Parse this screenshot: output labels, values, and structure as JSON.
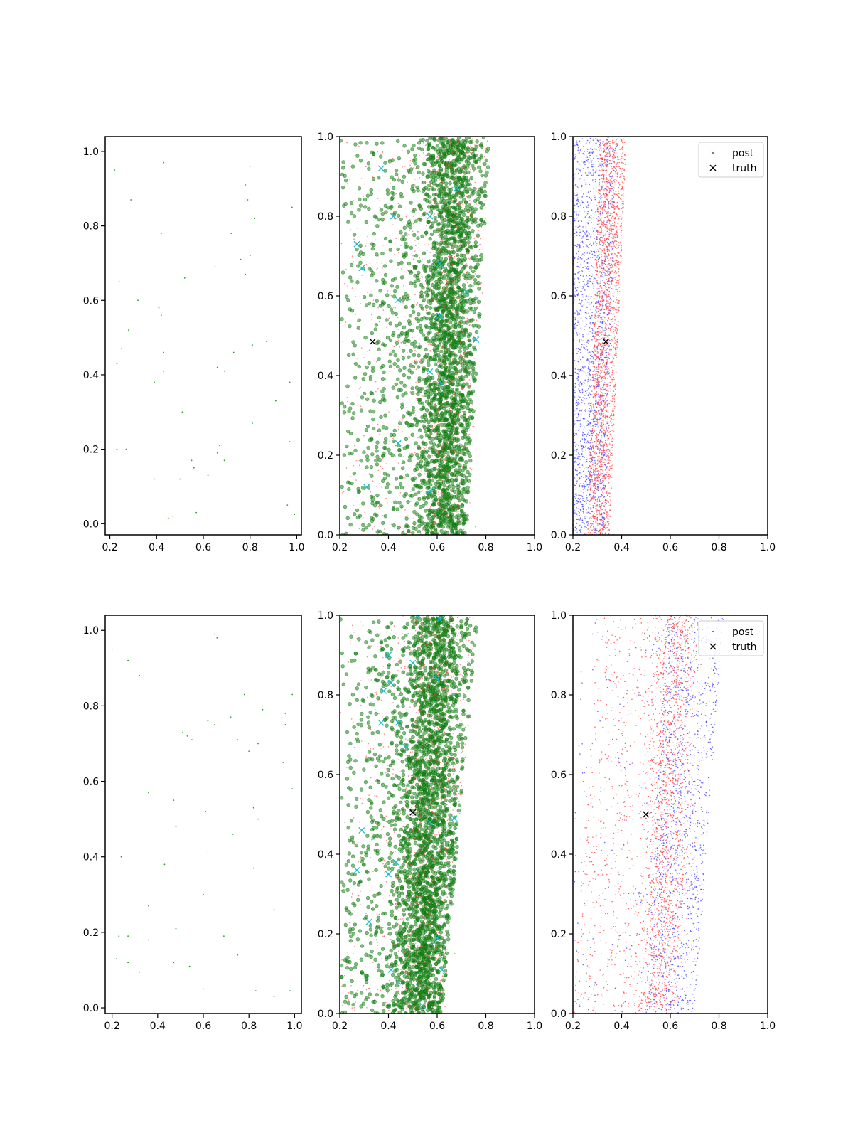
{
  "colors": {
    "axis": "#000000",
    "green_sample": "#2ca02c",
    "green_dense": "#1a8a1a",
    "cyan_marker": "#17becf",
    "red_points": "#ff3b3b",
    "blue_points": "#3b3bff",
    "truth_marker": "#000000"
  },
  "chart_data": [
    {
      "type": "scatter",
      "panel": "row1-col1",
      "xlim": [
        0.18,
        1.02
      ],
      "ylim": [
        -0.03,
        1.04
      ],
      "xticks": [
        "0.2",
        "0.4",
        "0.6",
        "0.8",
        "1.0"
      ],
      "xtick_values": [
        0.2,
        0.4,
        0.6,
        0.8,
        1.0
      ],
      "yticks": [
        "0.0",
        "0.2",
        "0.4",
        "0.6",
        "0.8",
        "1.0"
      ],
      "ytick_values": [
        0.0,
        0.2,
        0.4,
        0.6,
        0.8,
        1.0
      ],
      "series": [
        {
          "style": "tiny-green",
          "points": [
            [
              0.22,
              0.95
            ],
            [
              0.43,
              0.97
            ],
            [
              0.8,
              0.96
            ],
            [
              0.29,
              0.87
            ],
            [
              0.78,
              0.91
            ],
            [
              0.79,
              0.87
            ],
            [
              0.98,
              0.85
            ],
            [
              0.82,
              0.82
            ],
            [
              0.42,
              0.78
            ],
            [
              0.72,
              0.78
            ],
            [
              0.76,
              0.71
            ],
            [
              0.8,
              0.72
            ],
            [
              0.65,
              0.69
            ],
            [
              0.52,
              0.66
            ],
            [
              0.78,
              0.67
            ],
            [
              0.24,
              0.65
            ],
            [
              0.32,
              0.6
            ],
            [
              0.41,
              0.58
            ],
            [
              0.42,
              0.56
            ],
            [
              0.28,
              0.52
            ],
            [
              0.87,
              0.49
            ],
            [
              0.81,
              0.48
            ],
            [
              0.25,
              0.47
            ],
            [
              0.43,
              0.46
            ],
            [
              0.73,
              0.46
            ],
            [
              0.23,
              0.43
            ],
            [
              0.66,
              0.42
            ],
            [
              0.69,
              0.41
            ],
            [
              0.43,
              0.41
            ],
            [
              0.39,
              0.38
            ],
            [
              0.97,
              0.38
            ],
            [
              0.91,
              0.33
            ],
            [
              0.51,
              0.3
            ],
            [
              0.81,
              0.27
            ],
            [
              0.97,
              0.22
            ],
            [
              0.23,
              0.2
            ],
            [
              0.27,
              0.2
            ],
            [
              0.67,
              0.21
            ],
            [
              0.66,
              0.19
            ],
            [
              0.69,
              0.17
            ],
            [
              0.55,
              0.17
            ],
            [
              0.56,
              0.15
            ],
            [
              0.62,
              0.13
            ],
            [
              0.39,
              0.12
            ],
            [
              0.5,
              0.12
            ],
            [
              0.96,
              0.05
            ],
            [
              0.57,
              0.03
            ],
            [
              0.47,
              0.02
            ],
            [
              0.45,
              0.015
            ],
            [
              0.99,
              0.025
            ]
          ]
        }
      ]
    },
    {
      "type": "scatter",
      "panel": "row1-col2",
      "xlim": [
        0.2,
        1.0
      ],
      "ylim": [
        0.0,
        1.0
      ],
      "xticks": [
        "0.2",
        "0.4",
        "0.6",
        "0.8",
        "1.0"
      ],
      "xtick_values": [
        0.2,
        0.4,
        0.6,
        0.8,
        1.0
      ],
      "yticks": [
        "0.0",
        "0.2",
        "0.4",
        "0.6",
        "0.8",
        "1.0"
      ],
      "ytick_values": [
        0.0,
        0.2,
        0.4,
        0.6,
        0.8,
        1.0
      ],
      "density": {
        "kind": "green",
        "x_left": 0.2,
        "x_right_bottom": 0.72,
        "x_right_top": 0.82,
        "center_bottom": 0.62,
        "center_top": 0.66,
        "count": 2800
      },
      "cyan_markers": [
        [
          0.37,
          0.92
        ],
        [
          0.27,
          0.73
        ],
        [
          0.29,
          0.67
        ],
        [
          0.42,
          0.8
        ],
        [
          0.57,
          0.8
        ],
        [
          0.61,
          0.68
        ],
        [
          0.44,
          0.59
        ],
        [
          0.76,
          0.49
        ],
        [
          0.72,
          0.61
        ],
        [
          0.57,
          0.41
        ],
        [
          0.62,
          0.38
        ],
        [
          0.44,
          0.23
        ],
        [
          0.31,
          0.12
        ],
        [
          0.57,
          0.11
        ],
        [
          0.61,
          0.55
        ],
        [
          0.68,
          0.87
        ]
      ],
      "truth": [
        0.335,
        0.485
      ]
    },
    {
      "type": "scatter",
      "panel": "row1-col3",
      "xlim": [
        0.2,
        1.0
      ],
      "ylim": [
        0.0,
        1.0
      ],
      "xticks": [
        "0.2",
        "0.4",
        "0.6",
        "0.8",
        "1.0"
      ],
      "xtick_values": [
        0.2,
        0.4,
        0.6,
        0.8,
        1.0
      ],
      "yticks": [
        "0.0",
        "0.2",
        "0.4",
        "0.6",
        "0.8",
        "1.0"
      ],
      "ytick_values": [
        0.0,
        0.2,
        0.4,
        0.6,
        0.8,
        1.0
      ],
      "density": {
        "kind": "redblue",
        "blue": {
          "x_left": 0.2,
          "x_right_bottom": 0.33,
          "x_right_top": 0.38,
          "count": 1800
        },
        "red": {
          "x_left_bottom": 0.26,
          "x_left_top": 0.31,
          "x_right_bottom": 0.35,
          "x_right_top": 0.42,
          "count": 2000
        }
      },
      "truth": [
        0.335,
        0.485
      ],
      "legend": [
        {
          "label": "post",
          "marker": "dot"
        },
        {
          "label": "truth",
          "marker": "x"
        }
      ]
    },
    {
      "type": "scatter",
      "panel": "row2-col1",
      "xlim": [
        0.17,
        1.03
      ],
      "ylim": [
        -0.015,
        1.04
      ],
      "xticks": [
        "0.2",
        "0.4",
        "0.6",
        "0.8",
        "1.0"
      ],
      "xtick_values": [
        0.2,
        0.4,
        0.6,
        0.8,
        1.0
      ],
      "yticks": [
        "0.0",
        "0.2",
        "0.4",
        "0.6",
        "0.8",
        "1.0"
      ],
      "ytick_values": [
        0.0,
        0.2,
        0.4,
        0.6,
        0.8,
        1.0
      ],
      "series": [
        {
          "style": "tiny-green",
          "points": [
            [
              0.2,
              0.95
            ],
            [
              0.27,
              0.92
            ],
            [
              0.32,
              0.88
            ],
            [
              0.65,
              0.99
            ],
            [
              0.66,
              0.98
            ],
            [
              0.99,
              0.83
            ],
            [
              0.78,
              0.83
            ],
            [
              0.86,
              0.79
            ],
            [
              0.96,
              0.78
            ],
            [
              0.72,
              0.77
            ],
            [
              0.62,
              0.76
            ],
            [
              0.65,
              0.75
            ],
            [
              0.96,
              0.75
            ],
            [
              0.51,
              0.73
            ],
            [
              0.53,
              0.72
            ],
            [
              0.55,
              0.71
            ],
            [
              0.75,
              0.71
            ],
            [
              0.84,
              0.7
            ],
            [
              0.8,
              0.68
            ],
            [
              0.95,
              0.65
            ],
            [
              0.99,
              0.58
            ],
            [
              0.36,
              0.57
            ],
            [
              0.47,
              0.55
            ],
            [
              0.82,
              0.53
            ],
            [
              0.61,
              0.52
            ],
            [
              0.84,
              0.5
            ],
            [
              0.48,
              0.48
            ],
            [
              0.73,
              0.46
            ],
            [
              0.24,
              0.4
            ],
            [
              0.62,
              0.41
            ],
            [
              0.43,
              0.38
            ],
            [
              0.82,
              0.37
            ],
            [
              0.6,
              0.3
            ],
            [
              0.36,
              0.27
            ],
            [
              0.91,
              0.26
            ],
            [
              0.48,
              0.21
            ],
            [
              0.23,
              0.19
            ],
            [
              0.27,
              0.19
            ],
            [
              0.36,
              0.18
            ],
            [
              0.69,
              0.19
            ],
            [
              0.75,
              0.14
            ],
            [
              0.22,
              0.13
            ],
            [
              0.27,
              0.12
            ],
            [
              0.47,
              0.12
            ],
            [
              0.54,
              0.11
            ],
            [
              0.32,
              0.095
            ],
            [
              0.6,
              0.05
            ],
            [
              0.83,
              0.045
            ],
            [
              0.91,
              0.03
            ],
            [
              0.98,
              0.045
            ]
          ]
        }
      ]
    },
    {
      "type": "scatter",
      "panel": "row2-col2",
      "xlim": [
        0.2,
        1.0
      ],
      "ylim": [
        0.0,
        1.0
      ],
      "xticks": [
        "0.2",
        "0.4",
        "0.6",
        "0.8",
        "1.0"
      ],
      "xtick_values": [
        0.2,
        0.4,
        0.6,
        0.8,
        1.0
      ],
      "yticks": [
        "0.0",
        "0.2",
        "0.4",
        "0.6",
        "0.8",
        "1.0"
      ],
      "ytick_values": [
        0.0,
        0.2,
        0.4,
        0.6,
        0.8,
        1.0
      ],
      "density": {
        "kind": "green",
        "x_left": 0.2,
        "x_right_bottom": 0.62,
        "x_right_top": 0.77,
        "center_bottom": 0.52,
        "center_top": 0.6,
        "count": 3000
      },
      "cyan_markers": [
        [
          0.52,
          1.0
        ],
        [
          0.61,
          0.99
        ],
        [
          0.4,
          0.9
        ],
        [
          0.5,
          0.88
        ],
        [
          0.41,
          0.83
        ],
        [
          0.38,
          0.81
        ],
        [
          0.37,
          0.73
        ],
        [
          0.44,
          0.73
        ],
        [
          0.6,
          0.84
        ],
        [
          0.47,
          0.67
        ],
        [
          0.67,
          0.49
        ],
        [
          0.57,
          0.48
        ],
        [
          0.27,
          0.36
        ],
        [
          0.43,
          0.38
        ],
        [
          0.4,
          0.35
        ],
        [
          0.41,
          0.11
        ],
        [
          0.44,
          0.08
        ],
        [
          0.62,
          0.11
        ],
        [
          0.54,
          0.02
        ],
        [
          0.6,
          0.19
        ],
        [
          0.32,
          0.23
        ],
        [
          0.29,
          0.46
        ]
      ],
      "truth": [
        0.5,
        0.505
      ]
    },
    {
      "type": "scatter",
      "panel": "row2-col3",
      "xlim": [
        0.2,
        1.0
      ],
      "ylim": [
        0.0,
        1.0
      ],
      "xticks": [
        "0.2",
        "0.4",
        "0.6",
        "0.8",
        "1.0"
      ],
      "xtick_values": [
        0.2,
        0.4,
        0.6,
        0.8,
        1.0
      ],
      "yticks": [
        "0.0",
        "0.2",
        "0.4",
        "0.6",
        "0.8",
        "1.0"
      ],
      "ytick_values": [
        0.0,
        0.2,
        0.4,
        0.6,
        0.8,
        1.0
      ],
      "density": {
        "kind": "redblue",
        "blue": {
          "x_left_bottom": 0.5,
          "x_left_top": 0.58,
          "x_right_bottom": 0.7,
          "x_right_top": 0.82,
          "count": 1500,
          "sparse_left": 0.2
        },
        "red": {
          "x_left_bottom": 0.2,
          "x_left_top": 0.3,
          "x_right_bottom": 0.62,
          "x_right_top": 0.72,
          "center_bottom": 0.55,
          "center_top": 0.62,
          "count": 2200
        }
      },
      "truth": [
        0.5,
        0.5
      ],
      "legend": [
        {
          "label": "post",
          "marker": "dot"
        },
        {
          "label": "truth",
          "marker": "x"
        }
      ]
    }
  ]
}
